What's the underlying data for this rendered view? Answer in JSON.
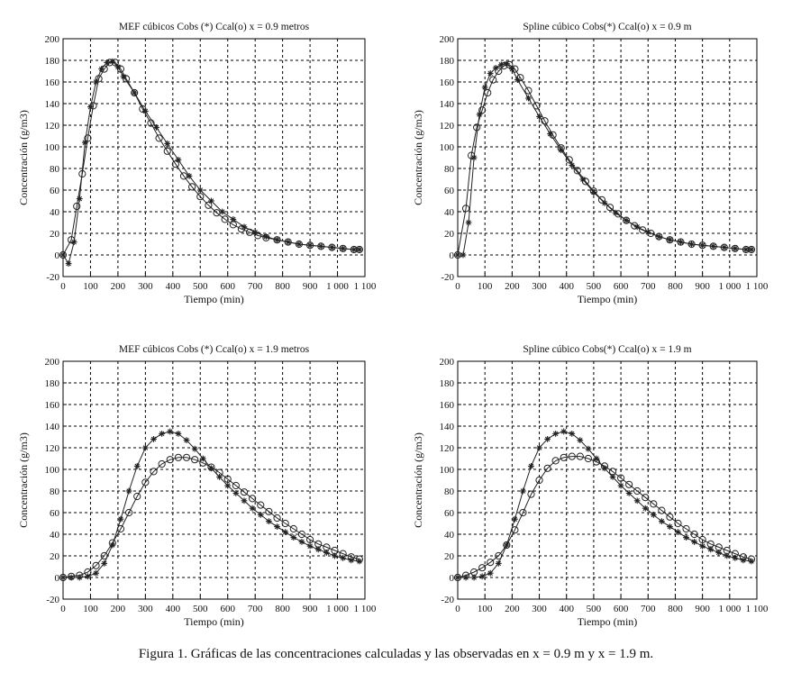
{
  "caption": "Figura 1. Gráficas de las concentraciones calculadas y las observadas en x = 0.9 m y x = 1.9 m.",
  "styles": {
    "axis_color": "#000000",
    "grid_color": "#000000",
    "series_color": "#222222"
  },
  "chart_data": [
    {
      "type": "line",
      "title": "MEF cúbicos Cobs (*) Ccal(o) x = 0.9 metros",
      "xlabel": "Tiempo (min)",
      "ylabel": "Concentración (g/m3)",
      "xlim": [
        0,
        1100
      ],
      "ylim": [
        -20,
        200
      ],
      "xticks": [
        "0",
        "100",
        "200",
        "300",
        "400",
        "500",
        "600",
        "700",
        "800",
        "900",
        "1 000",
        "1 100"
      ],
      "yticks": [
        "-20",
        "0",
        "20",
        "40",
        "60",
        "80",
        "100",
        "120",
        "140",
        "160",
        "180",
        "200"
      ],
      "series": [
        {
          "name": "Cobs (*)",
          "marker": "star",
          "x": [
            0,
            20,
            40,
            60,
            80,
            100,
            120,
            140,
            160,
            180,
            200,
            220,
            260,
            300,
            340,
            380,
            420,
            460,
            500,
            540,
            580,
            620,
            660,
            700,
            740,
            780,
            820,
            860,
            900,
            940,
            980,
            1020,
            1060,
            1080
          ],
          "y": [
            0,
            -8,
            12,
            52,
            104,
            137,
            160,
            172,
            178,
            179,
            174,
            165,
            150,
            133,
            118,
            103,
            88,
            73,
            60,
            50,
            40,
            33,
            26,
            21,
            17,
            14,
            12,
            10,
            9,
            8,
            7,
            6,
            5,
            5
          ]
        },
        {
          "name": "Ccal (o)",
          "marker": "circle",
          "x": [
            0,
            30,
            50,
            70,
            90,
            110,
            130,
            150,
            170,
            190,
            210,
            230,
            260,
            290,
            320,
            350,
            380,
            410,
            440,
            470,
            500,
            530,
            560,
            590,
            620,
            650,
            680,
            710,
            740,
            780,
            820,
            860,
            900,
            940,
            980,
            1020,
            1060,
            1080
          ],
          "y": [
            0,
            14,
            45,
            75,
            108,
            138,
            163,
            172,
            178,
            178,
            172,
            163,
            150,
            135,
            122,
            108,
            96,
            84,
            73,
            63,
            54,
            46,
            39,
            33,
            28,
            24,
            21,
            18,
            16,
            14,
            12,
            10,
            9,
            8,
            7,
            6,
            5,
            5
          ]
        }
      ]
    },
    {
      "type": "line",
      "title": "Spline cúbico Cobs(*) Ccal(o) x = 0.9 m",
      "xlabel": "Tiempo (min)",
      "ylabel": "Concentración (g/m3)",
      "xlim": [
        0,
        1100
      ],
      "ylim": [
        -20,
        200
      ],
      "xticks": [
        "0",
        "100",
        "200",
        "300",
        "400",
        "500",
        "600",
        "700",
        "800",
        "900",
        "1 000",
        "1 100"
      ],
      "yticks": [
        "-20",
        "0",
        "20",
        "40",
        "60",
        "80",
        "100",
        "120",
        "140",
        "160",
        "180",
        "200"
      ],
      "series": [
        {
          "name": "Cobs (*)",
          "marker": "star",
          "x": [
            0,
            20,
            40,
            60,
            80,
            100,
            120,
            140,
            160,
            180,
            200,
            220,
            260,
            300,
            340,
            380,
            420,
            460,
            500,
            540,
            580,
            620,
            660,
            700,
            740,
            780,
            820,
            860,
            900,
            940,
            980,
            1020,
            1060,
            1080
          ],
          "y": [
            0,
            0,
            30,
            90,
            130,
            155,
            168,
            173,
            176,
            177,
            172,
            162,
            145,
            128,
            112,
            97,
            83,
            70,
            58,
            48,
            39,
            32,
            26,
            21,
            17,
            14,
            12,
            10,
            9,
            8,
            7,
            6,
            5,
            5
          ]
        },
        {
          "name": "Ccal (o)",
          "marker": "circle",
          "x": [
            0,
            30,
            50,
            70,
            90,
            110,
            130,
            150,
            170,
            190,
            210,
            230,
            260,
            290,
            320,
            350,
            380,
            410,
            440,
            470,
            500,
            530,
            560,
            590,
            620,
            650,
            680,
            710,
            740,
            780,
            820,
            860,
            900,
            940,
            980,
            1020,
            1060,
            1080
          ],
          "y": [
            0,
            43,
            92,
            118,
            134,
            150,
            162,
            170,
            175,
            176,
            172,
            164,
            152,
            138,
            124,
            111,
            99,
            88,
            78,
            68,
            59,
            51,
            44,
            38,
            32,
            27,
            23,
            20,
            17,
            14,
            12,
            10,
            9,
            8,
            7,
            6,
            5,
            5
          ]
        }
      ]
    },
    {
      "type": "line",
      "title": "MEF cúbicos Cobs (*) Ccal(o) x = 1.9 metros",
      "xlabel": "Tiempo (min)",
      "ylabel": "Concentración (g/m3)",
      "xlim": [
        0,
        1100
      ],
      "ylim": [
        -20,
        200
      ],
      "xticks": [
        "0",
        "100",
        "200",
        "300",
        "400",
        "500",
        "600",
        "700",
        "800",
        "900",
        "1 000",
        "1 100"
      ],
      "yticks": [
        "-20",
        "0",
        "20",
        "40",
        "60",
        "80",
        "100",
        "120",
        "140",
        "160",
        "180",
        "200"
      ],
      "series": [
        {
          "name": "Cobs (*)",
          "marker": "star",
          "x": [
            0,
            30,
            60,
            90,
            120,
            150,
            180,
            210,
            240,
            270,
            300,
            330,
            360,
            390,
            420,
            450,
            480,
            510,
            540,
            570,
            600,
            630,
            660,
            690,
            720,
            750,
            780,
            810,
            840,
            870,
            900,
            930,
            960,
            990,
            1020,
            1050,
            1080
          ],
          "y": [
            0,
            0,
            0,
            1,
            4,
            13,
            30,
            54,
            80,
            103,
            120,
            128,
            133,
            135,
            133,
            127,
            119,
            110,
            101,
            93,
            85,
            78,
            71,
            64,
            58,
            52,
            47,
            42,
            37,
            33,
            29,
            26,
            23,
            20,
            18,
            16,
            15
          ]
        },
        {
          "name": "Ccal (o)",
          "marker": "circle",
          "x": [
            0,
            30,
            60,
            90,
            120,
            150,
            180,
            210,
            240,
            270,
            300,
            330,
            360,
            390,
            420,
            450,
            480,
            510,
            540,
            570,
            600,
            630,
            660,
            690,
            720,
            750,
            780,
            810,
            840,
            870,
            900,
            930,
            960,
            990,
            1020,
            1050,
            1080
          ],
          "y": [
            0,
            1,
            2,
            5,
            11,
            20,
            32,
            45,
            60,
            75,
            88,
            98,
            105,
            109,
            111,
            111,
            109,
            106,
            102,
            97,
            91,
            85,
            79,
            73,
            67,
            61,
            55,
            50,
            45,
            40,
            35,
            31,
            28,
            25,
            22,
            19,
            17
          ]
        }
      ]
    },
    {
      "type": "line",
      "title": "Spline cúbico Cobs(*) Ccal(o) x = 1.9 m",
      "xlabel": "Tiempo (min)",
      "ylabel": "Concentración (g/m3)",
      "xlim": [
        0,
        1100
      ],
      "ylim": [
        -20,
        200
      ],
      "xticks": [
        "0",
        "100",
        "200",
        "300",
        "400",
        "500",
        "600",
        "700",
        "800",
        "900",
        "1 000",
        "1 100"
      ],
      "yticks": [
        "-20",
        "0",
        "20",
        "40",
        "60",
        "80",
        "100",
        "120",
        "140",
        "160",
        "180",
        "200"
      ],
      "series": [
        {
          "name": "Cobs (*)",
          "marker": "star",
          "x": [
            0,
            30,
            60,
            90,
            120,
            150,
            180,
            210,
            240,
            270,
            300,
            330,
            360,
            390,
            420,
            450,
            480,
            510,
            540,
            570,
            600,
            630,
            660,
            690,
            720,
            750,
            780,
            810,
            840,
            870,
            900,
            930,
            960,
            990,
            1020,
            1050,
            1080
          ],
          "y": [
            0,
            0,
            0,
            1,
            4,
            13,
            30,
            54,
            80,
            103,
            120,
            128,
            133,
            135,
            133,
            127,
            119,
            110,
            101,
            93,
            85,
            78,
            71,
            64,
            58,
            52,
            47,
            42,
            37,
            33,
            29,
            26,
            23,
            20,
            18,
            16,
            15
          ]
        },
        {
          "name": "Ccal (o)",
          "marker": "circle",
          "x": [
            0,
            30,
            60,
            90,
            120,
            150,
            180,
            210,
            240,
            270,
            300,
            330,
            360,
            390,
            420,
            450,
            480,
            510,
            540,
            570,
            600,
            630,
            660,
            690,
            720,
            750,
            780,
            810,
            840,
            870,
            900,
            930,
            960,
            990,
            1020,
            1050,
            1080
          ],
          "y": [
            0,
            2,
            5,
            9,
            14,
            20,
            30,
            44,
            60,
            77,
            90,
            101,
            108,
            111,
            112,
            112,
            110,
            107,
            103,
            98,
            92,
            86,
            80,
            74,
            68,
            62,
            56,
            50,
            45,
            40,
            35,
            31,
            28,
            25,
            22,
            19,
            17
          ]
        }
      ]
    }
  ]
}
